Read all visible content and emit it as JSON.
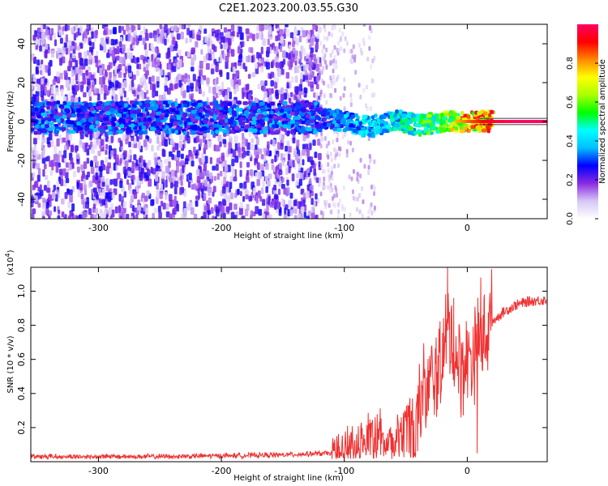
{
  "figure_title": "C2E1.2023.200.03.55.G30",
  "chart_data": [
    {
      "type": "heatmap",
      "name": "spectrogram",
      "xlabel": "Height of straight line (km)",
      "ylabel": "Frequency (Hz)",
      "xlim": [
        -355,
        65
      ],
      "ylim": [
        -50,
        50
      ],
      "xticks": [
        -300,
        -200,
        -100,
        0
      ],
      "yticks": [
        -40,
        -20,
        0,
        20,
        40
      ],
      "colorbar": {
        "label": "Normalized spectral amplitude",
        "range": [
          0,
          1
        ],
        "ticks": [
          "0.0",
          "0.2",
          "0.4",
          "0.6",
          "0.8"
        ],
        "colormap": [
          "#ffffff",
          "#d6c7f5",
          "#8a2be2",
          "#0000ff",
          "#00bfff",
          "#00ffff",
          "#00ff00",
          "#aaff00",
          "#ffff00",
          "#ff8800",
          "#ff0000",
          "#ff0060"
        ]
      },
      "ridge": {
        "description_free": true,
        "x": [
          -120,
          -100,
          -80,
          -60,
          -40,
          -20,
          0,
          20,
          40,
          65
        ],
        "y": [
          2,
          0,
          -3,
          1,
          -2,
          0,
          0,
          0,
          0,
          0
        ],
        "amplitude": [
          0.3,
          0.4,
          0.45,
          0.5,
          0.55,
          0.7,
          0.85,
          0.95,
          1.0,
          1.0
        ]
      }
    },
    {
      "type": "line",
      "name": "snr",
      "xlabel": "Height of straight line (km)",
      "ylabel": "SNR (10 * v/v)",
      "multiplier_label": "(x10",
      "multiplier_exp": "4",
      "multiplier_close": ")",
      "xlim": [
        -355,
        65
      ],
      "ylim": [
        0,
        1.14
      ],
      "xticks": [
        -300,
        -200,
        -100,
        0
      ],
      "yticks": [
        0.2,
        0.4,
        0.6,
        0.8,
        1.0
      ],
      "ytick_labels": [
        "0.2",
        "0.4",
        "0.6",
        "0.8",
        "1.0"
      ],
      "color": "#f03030",
      "envelope": {
        "x": [
          -355,
          -250,
          -150,
          -110,
          -90,
          -80,
          -70,
          -60,
          -50,
          -40,
          -30,
          -20,
          -15,
          -10,
          -5,
          0,
          10,
          20,
          30,
          40,
          50,
          65
        ],
        "y": [
          0.03,
          0.03,
          0.04,
          0.05,
          0.12,
          0.2,
          0.18,
          0.12,
          0.25,
          0.35,
          0.45,
          0.6,
          0.8,
          0.62,
          0.55,
          0.6,
          0.7,
          0.82,
          0.88,
          0.92,
          0.94,
          0.95
        ]
      },
      "spikes": [
        {
          "x": -16,
          "y": 1.14
        },
        {
          "x": -23,
          "y": 0.78
        },
        {
          "x": -11,
          "y": 0.96
        },
        {
          "x": 11,
          "y": 1.08
        },
        {
          "x": 8,
          "y": 0.05
        }
      ]
    }
  ]
}
